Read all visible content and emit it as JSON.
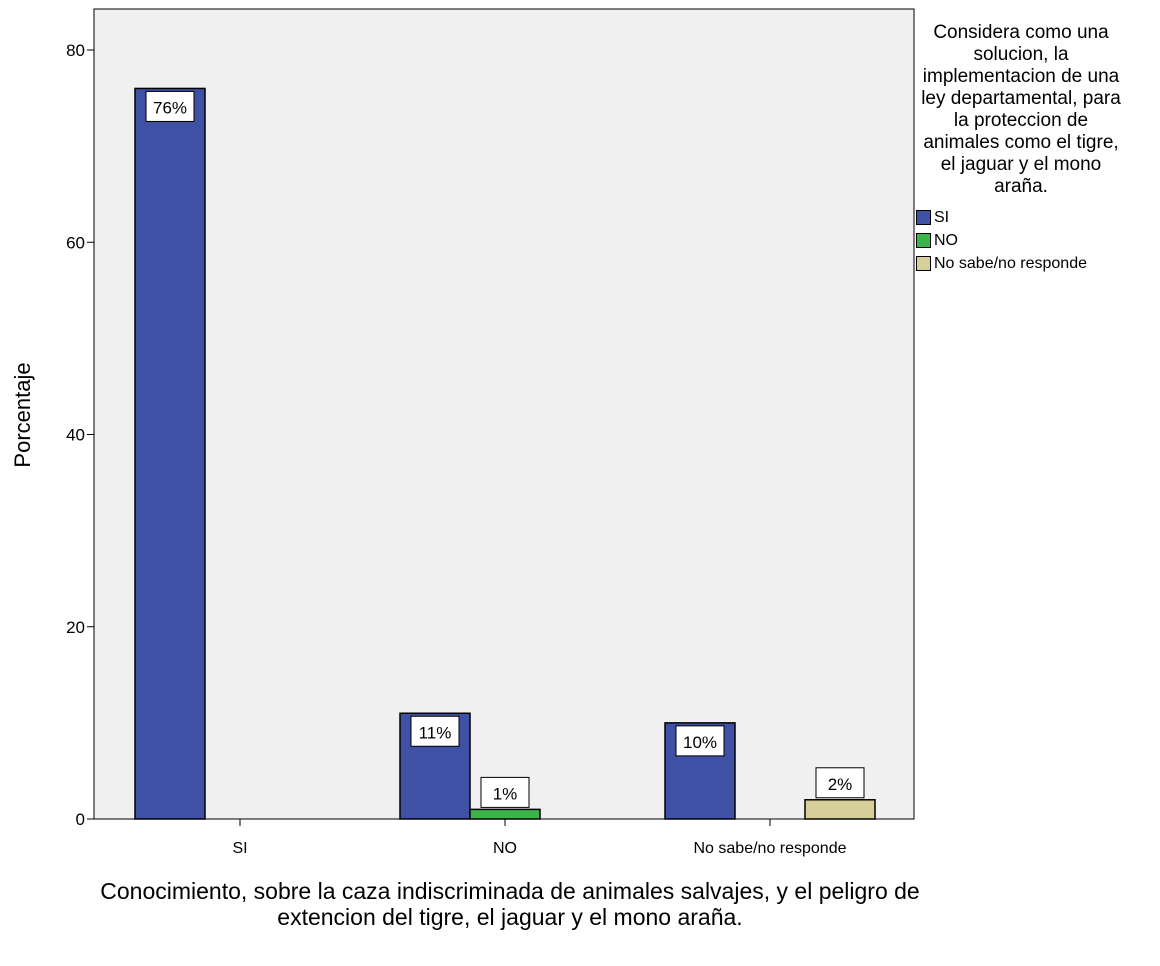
{
  "chart_data": {
    "type": "bar",
    "categories": [
      "SI",
      "NO",
      "No sabe/no responde"
    ],
    "series": [
      {
        "name": "SI",
        "color": "#3f51a5",
        "values": [
          76,
          11,
          10
        ],
        "labels": [
          "76%",
          "11%",
          "10%"
        ]
      },
      {
        "name": "NO",
        "color": "#3bb54a",
        "values": [
          0,
          1,
          0
        ],
        "labels": [
          "",
          "1%",
          ""
        ]
      },
      {
        "name": "No sabe/no responde",
        "color": "#d6cf9a",
        "values": [
          0,
          0,
          2
        ],
        "labels": [
          "",
          "",
          "2%"
        ]
      }
    ],
    "xlabel": "Conocimiento, sobre la caza indiscriminada de animales salvajes, y el peligro de extencion del tigre, el jaguar y el mono araña.",
    "ylabel": "Porcentaje",
    "ylim": [
      0,
      80
    ],
    "yticks": [
      0,
      20,
      40,
      60,
      80
    ],
    "legend_title": "Considera como una solucion, la implementacion de una ley departamental, para la proteccion de animales como el tigre, el jaguar y el mono araña.",
    "legend_position": "right",
    "plot_background": "#f0f0f0",
    "grid": false
  }
}
